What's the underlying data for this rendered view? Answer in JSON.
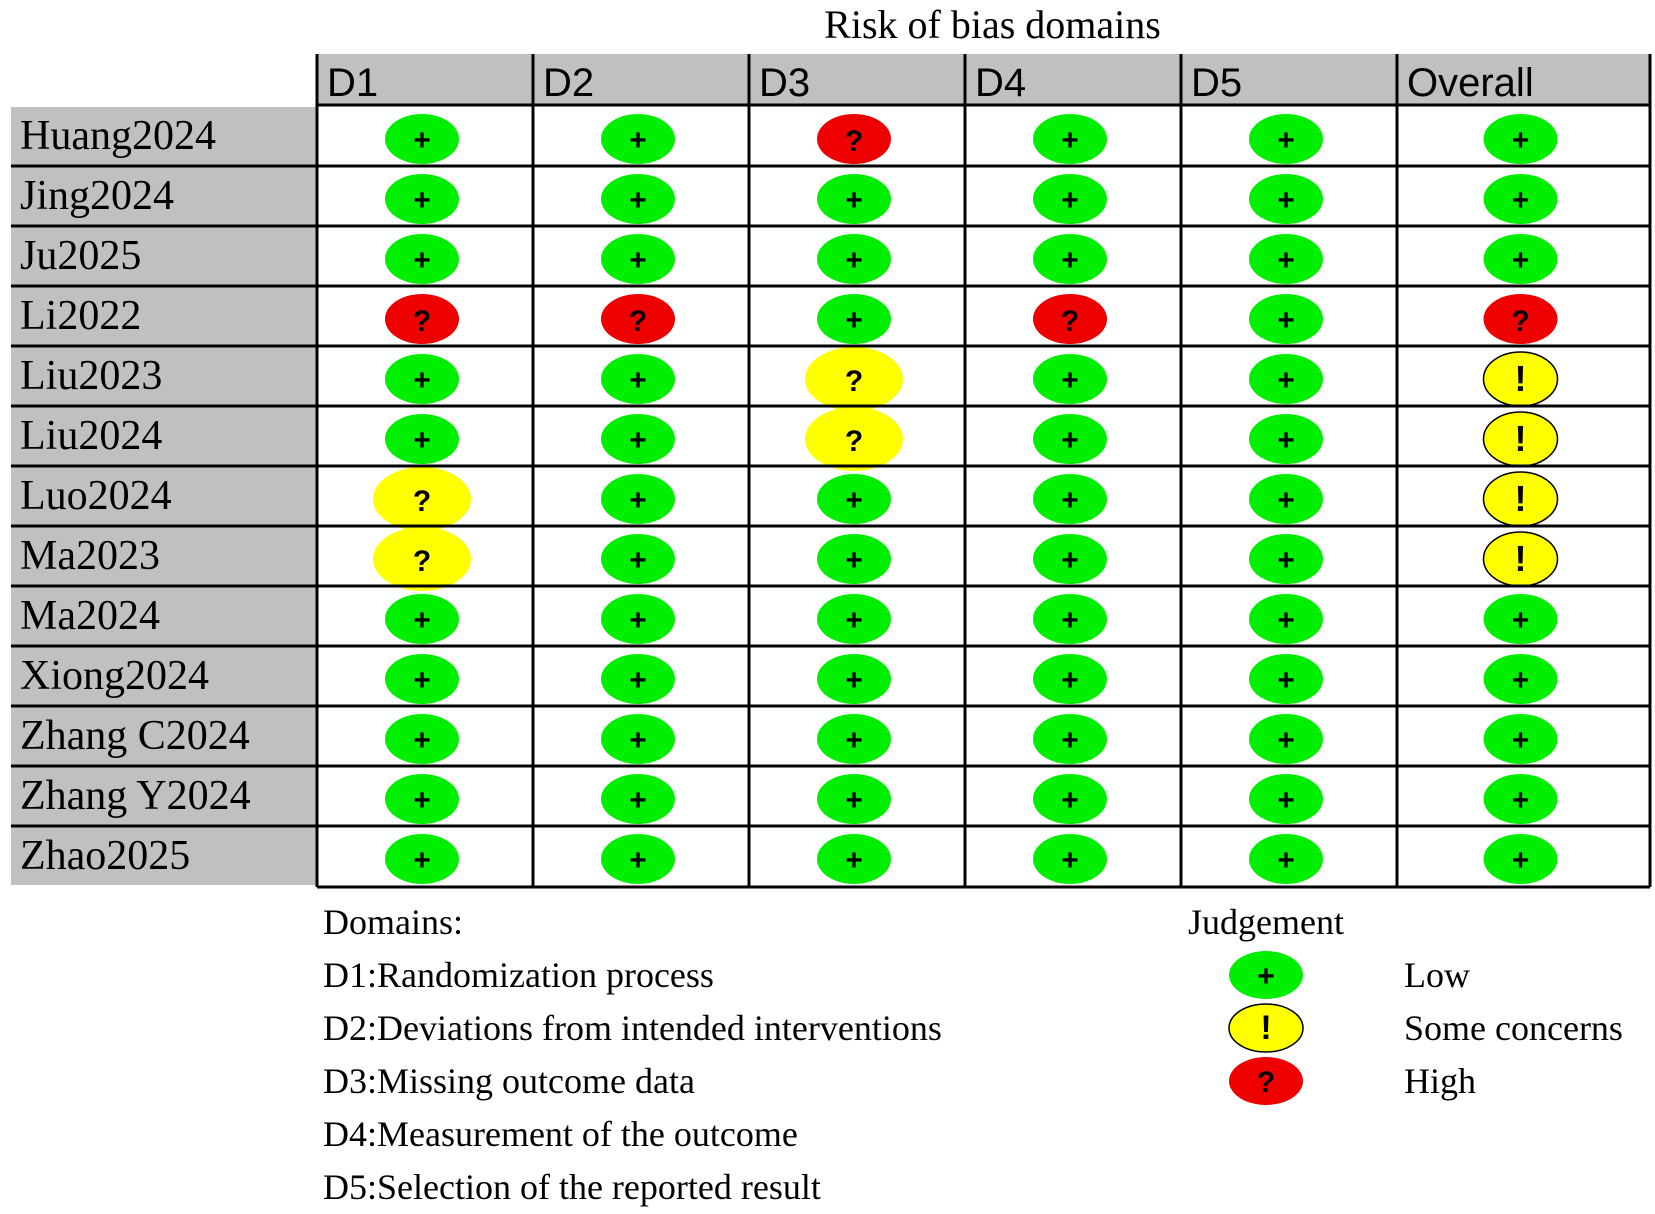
{
  "chart_data": {
    "type": "table",
    "title": "Risk of bias domains",
    "columns": [
      "D1",
      "D2",
      "D3",
      "D4",
      "D5",
      "Overall"
    ],
    "rows": [
      {
        "study": "Huang2024",
        "judgements": [
          "low",
          "low",
          "high",
          "low",
          "low",
          "low"
        ]
      },
      {
        "study": "Jing2024",
        "judgements": [
          "low",
          "low",
          "low",
          "low",
          "low",
          "low"
        ]
      },
      {
        "study": "Ju2025",
        "judgements": [
          "low",
          "low",
          "low",
          "low",
          "low",
          "low"
        ]
      },
      {
        "study": "Li2022",
        "judgements": [
          "high",
          "high",
          "low",
          "high",
          "low",
          "high"
        ]
      },
      {
        "study": "Liu2023",
        "judgements": [
          "low",
          "low",
          "some-q",
          "low",
          "low",
          "some"
        ]
      },
      {
        "study": "Liu2024",
        "judgements": [
          "low",
          "low",
          "some-q",
          "low",
          "low",
          "some"
        ]
      },
      {
        "study": "Luo2024",
        "judgements": [
          "some-q",
          "low",
          "low",
          "low",
          "low",
          "some"
        ]
      },
      {
        "study": "Ma2023",
        "judgements": [
          "some-q",
          "low",
          "low",
          "low",
          "low",
          "some"
        ]
      },
      {
        "study": "Ma2024",
        "judgements": [
          "low",
          "low",
          "low",
          "low",
          "low",
          "low"
        ]
      },
      {
        "study": "Xiong2024",
        "judgements": [
          "low",
          "low",
          "low",
          "low",
          "low",
          "low"
        ]
      },
      {
        "study": "Zhang C2024",
        "judgements": [
          "low",
          "low",
          "low",
          "low",
          "low",
          "low"
        ]
      },
      {
        "study": "Zhang Y2024",
        "judgements": [
          "low",
          "low",
          "low",
          "low",
          "low",
          "low"
        ]
      },
      {
        "study": "Zhao2025",
        "judgements": [
          "low",
          "low",
          "low",
          "low",
          "low",
          "low"
        ]
      }
    ],
    "symbols": {
      "low": "+",
      "high": "?",
      "some-q": "?",
      "some": "!"
    },
    "colors": {
      "low": "#00ee00",
      "high": "#ee0000",
      "some": "#ffff00",
      "header_bg": "#c0c0c0",
      "label_bg": "#c0c0c0",
      "grid": "#000000"
    },
    "legend": {
      "domains_title": "Domains:",
      "domains": [
        "D1:Randomization process",
        "D2:Deviations from intended interventions",
        "D3:Missing outcome data",
        "D4:Measurement of the outcome",
        "D5:Selection of the reported result"
      ],
      "judgement_title": "Judgement",
      "judgements": [
        {
          "key": "low",
          "symbol": "+",
          "label": "Low"
        },
        {
          "key": "some",
          "symbol": "!",
          "label": "Some concerns"
        },
        {
          "key": "high",
          "symbol": "?",
          "label": "High"
        }
      ]
    }
  }
}
